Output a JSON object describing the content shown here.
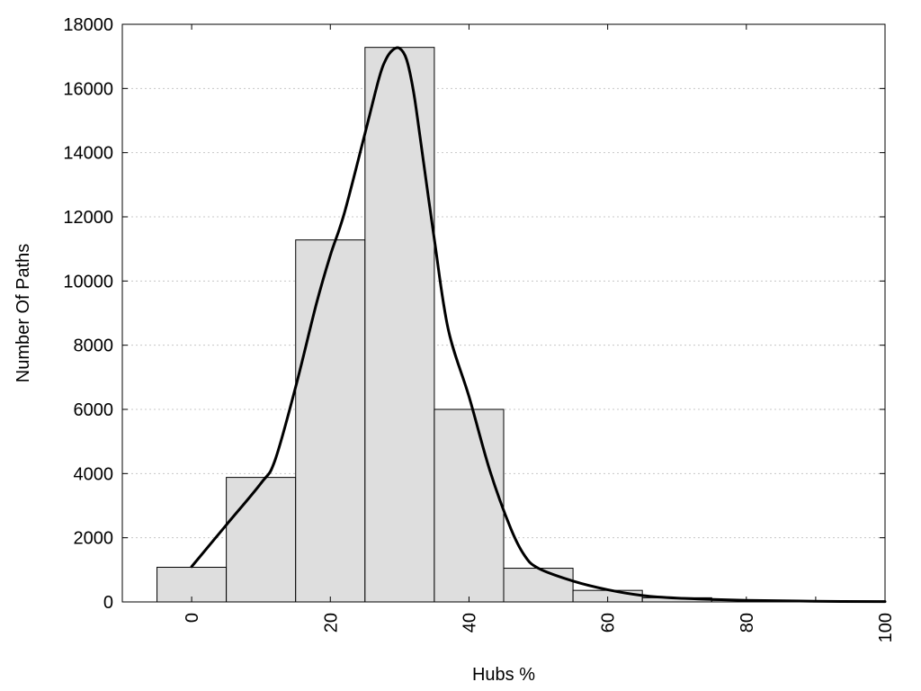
{
  "chart_data": {
    "type": "bar",
    "xlabel": "Hubs %",
    "ylabel": "Number Of Paths",
    "xlim": [
      -10,
      100
    ],
    "ylim": [
      0,
      18000
    ],
    "grid": true,
    "x_ticks": [
      0,
      20,
      40,
      60,
      80,
      100
    ],
    "y_ticks": [
      0,
      2000,
      4000,
      6000,
      8000,
      10000,
      12000,
      14000,
      16000,
      18000
    ],
    "bins": [
      {
        "center": 0,
        "value": 1080
      },
      {
        "center": 10,
        "value": 3880
      },
      {
        "center": 20,
        "value": 11280
      },
      {
        "center": 30,
        "value": 17280
      },
      {
        "center": 40,
        "value": 6000
      },
      {
        "center": 50,
        "value": 1050
      },
      {
        "center": 60,
        "value": 360
      },
      {
        "center": 70,
        "value": 130
      },
      {
        "center": 80,
        "value": 50
      },
      {
        "center": 90,
        "value": 20
      }
    ],
    "bin_width": 10,
    "curve": {
      "x": [
        0,
        5,
        10,
        12,
        15,
        18,
        20,
        22,
        25,
        27,
        28,
        29,
        30,
        31,
        32,
        33,
        35,
        37,
        40,
        43,
        46,
        48,
        50,
        55,
        60,
        65,
        70,
        80,
        90,
        100
      ],
      "y": [
        1100,
        2400,
        3700,
        4400,
        6700,
        9300,
        10800,
        12100,
        14600,
        16300,
        16900,
        17200,
        17250,
        16900,
        15900,
        14400,
        11300,
        8500,
        6400,
        4100,
        2300,
        1450,
        1050,
        650,
        380,
        200,
        120,
        50,
        20,
        10
      ]
    }
  }
}
